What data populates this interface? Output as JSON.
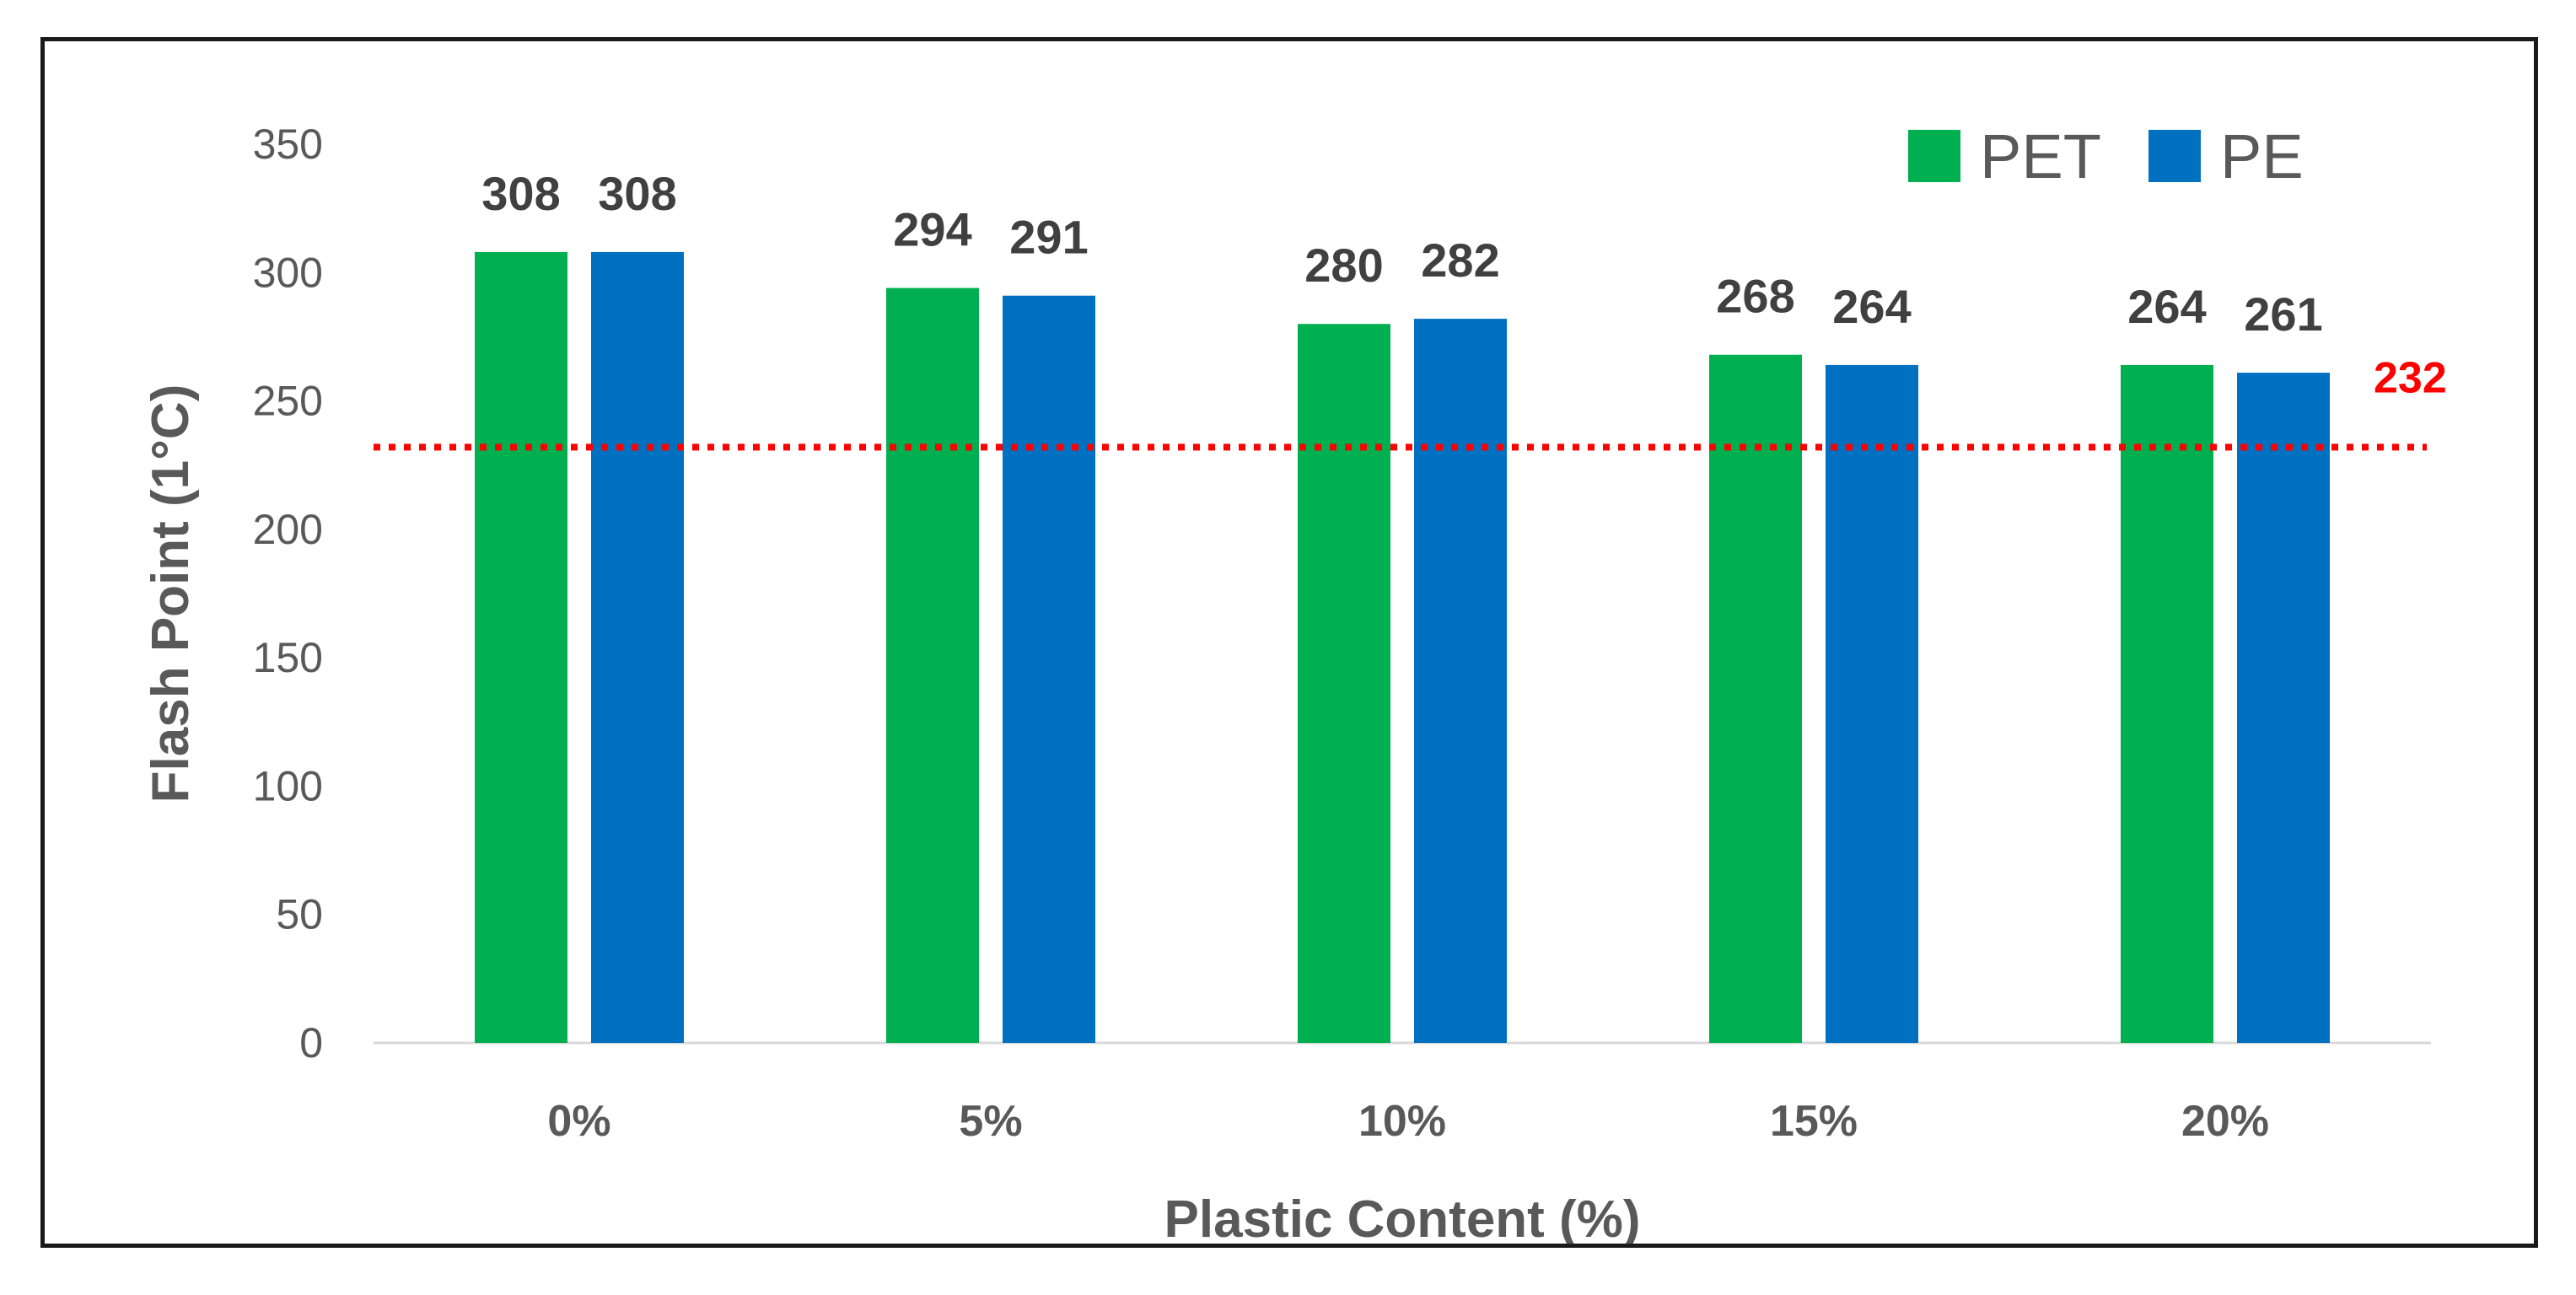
{
  "chart_data": {
    "type": "bar",
    "categories": [
      "0%",
      "5%",
      "10%",
      "15%",
      "20%"
    ],
    "series": [
      {
        "name": "PET",
        "color": "#00b050",
        "values": [
          308,
          294,
          280,
          268,
          264
        ]
      },
      {
        "name": "PE",
        "color": "#0070c0",
        "values": [
          308,
          291,
          282,
          264,
          261
        ]
      }
    ],
    "xlabel": "Plastic Content (%)",
    "ylabel": "Flash Point  (1°C)",
    "ylim": [
      0,
      350
    ],
    "yticks": [
      0,
      50,
      100,
      150,
      200,
      250,
      300,
      350
    ],
    "grid": false,
    "legend": "top-right",
    "reference_line": {
      "value": 232,
      "label": "232",
      "color": "#ff0000",
      "style": "dotted"
    }
  }
}
